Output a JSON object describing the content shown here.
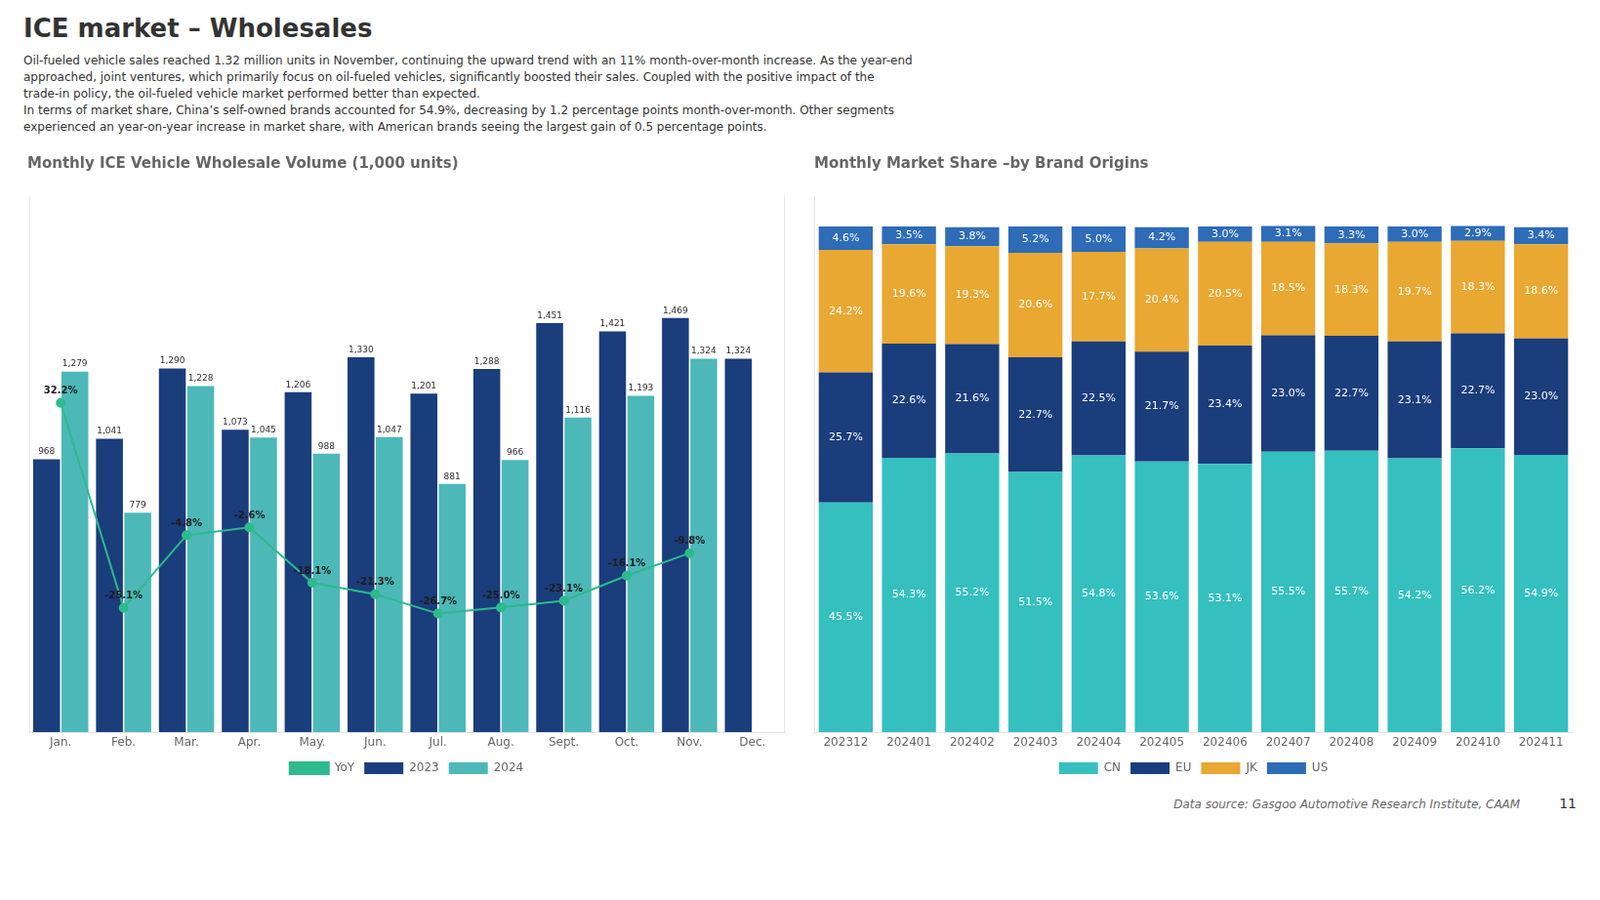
{
  "title": "ICE market – Wholesales",
  "subtitle": [
    "Oil-fueled vehicle sales reached 1.32 million units in November, continuing the upward trend with an 11% month-over-month increase.  As the year-end",
    "approached,  joint ventures,  which primarily focus on oil-fueled vehicles,  significantly boosted their sales.  Coupled with the positive impact of the",
    "trade-in policy,  the oil-fueled vehicle market performed better than expected.",
    "In terms of market share,  China’s self-owned brands accounted for 54.9%,  decreasing by 1.2 percentage points month-over-month.  Other segments",
    "experienced an year-on-year increase in market share,  with American brands seeing the largest gain of 0.5 percentage points."
  ],
  "annotations": [
    "Data source: Gasgoo Automotive Research Institute, CAAM",
    "11"
  ],
  "chart_data": [
    {
      "type": "bar",
      "title": "Monthly ICE Vehicle Wholesale Volume (1,000 units)",
      "categories": [
        "Jan.",
        "Feb.",
        "Mar.",
        "Apr.",
        "May.",
        "Jun.",
        "Jul.",
        "Aug.",
        "Sept.",
        "Oct.",
        "Nov.",
        "Dec."
      ],
      "series": [
        {
          "name": "2023",
          "color": "#1a3d7c",
          "values": [
            968,
            1041,
            1290,
            1073,
            1206,
            1330,
            1201,
            1288,
            1451,
            1421,
            1469,
            1324
          ],
          "value_labels": [
            "968",
            "1,041",
            "1,290",
            "1,073",
            "1,206",
            "1,330",
            "1,201",
            "1,288",
            "1,451",
            "1,421",
            "1,469",
            "1,324"
          ]
        },
        {
          "name": "2024",
          "color": "#4db8b8",
          "values": [
            1279,
            779,
            1228,
            1045,
            988,
            1047,
            881,
            966,
            1116,
            1193,
            1324,
            null
          ],
          "value_labels": [
            "1,279",
            "779",
            "1,228",
            "1,045",
            "988",
            "1,047",
            "881",
            "966",
            "1,116",
            "1,193",
            "1,324",
            null
          ]
        },
        {
          "name": "YoY",
          "type": "line",
          "color": "#2dba8c",
          "marker": "circle",
          "axis": "y2",
          "values": [
            32.2,
            -25.1,
            -4.8,
            -2.6,
            -18.1,
            -21.3,
            -26.7,
            -25.0,
            -23.1,
            -16.1,
            -9.8,
            null
          ],
          "value_labels": [
            "32.2%",
            "-25.1%",
            "-4.8%",
            "-2.6%",
            "-18.1%",
            "-21.3%",
            "-26.7%",
            "-25.0%",
            "-23.1%",
            "-16.1%",
            "-9.8%",
            null
          ]
        }
      ],
      "ylim": [
        0,
        1900
      ],
      "y2lim": [
        -60,
        90
      ],
      "grid": false,
      "legend": "bottom",
      "data_labels": true,
      "tick_labels": "x"
    },
    {
      "type": "bar",
      "title": "Monthly Market Share –by Brand Origins",
      "categories": [
        "202312",
        "202401",
        "202402",
        "202403",
        "202404",
        "202405",
        "202406",
        "202407",
        "202408",
        "202409",
        "202410",
        "202411"
      ],
      "series": [
        {
          "name": "CN",
          "color": "#36bfbf",
          "values": [
            45.5,
            54.3,
            55.2,
            51.5,
            54.8,
            53.6,
            53.1,
            55.5,
            55.7,
            54.2,
            56.2,
            54.9
          ],
          "value_labels": [
            "45.5%",
            "54.3%",
            "55.2%",
            "51.5%",
            "54.8%",
            "53.6%",
            "53.1%",
            "55.5%",
            "55.7%",
            "54.2%",
            "56.2%",
            "54.9%"
          ]
        },
        {
          "name": "EU",
          "color": "#1a3d7c",
          "values": [
            25.7,
            22.6,
            21.6,
            22.7,
            22.5,
            21.7,
            23.4,
            23.0,
            22.7,
            23.1,
            22.7,
            23.0
          ],
          "value_labels": [
            "25.7%",
            "22.6%",
            "21.6%",
            "22.7%",
            "22.5%",
            "21.7%",
            "23.4%",
            "23.0%",
            "22.7%",
            "23.1%",
            "22.7%",
            "23.0%"
          ]
        },
        {
          "name": "JK",
          "color": "#e8a832",
          "values": [
            24.2,
            19.6,
            19.3,
            20.6,
            17.7,
            20.4,
            20.5,
            18.5,
            18.3,
            19.7,
            18.3,
            18.6
          ],
          "value_labels": [
            "24.2%",
            "19.6%",
            "19.3%",
            "20.6%",
            "17.7%",
            "20.4%",
            "20.5%",
            "18.5%",
            "18.3%",
            "19.7%",
            "18.3%",
            "18.6%"
          ]
        },
        {
          "name": "US",
          "color": "#2e6cb8",
          "values": [
            4.6,
            3.5,
            3.8,
            5.2,
            5.0,
            4.2,
            3.0,
            3.1,
            3.3,
            3.0,
            2.9,
            3.4
          ],
          "value_labels": [
            "4.6%",
            "3.5%",
            "3.8%",
            "5.2%",
            "5.0%",
            "4.2%",
            "3.0%",
            "3.1%",
            "3.3%",
            "3.0%",
            "2.9%",
            "3.4%"
          ]
        }
      ],
      "ylim": [
        0,
        106
      ],
      "stacked": true,
      "grid": false,
      "legend": "bottom",
      "data_labels": true,
      "tick_labels": "x"
    }
  ]
}
